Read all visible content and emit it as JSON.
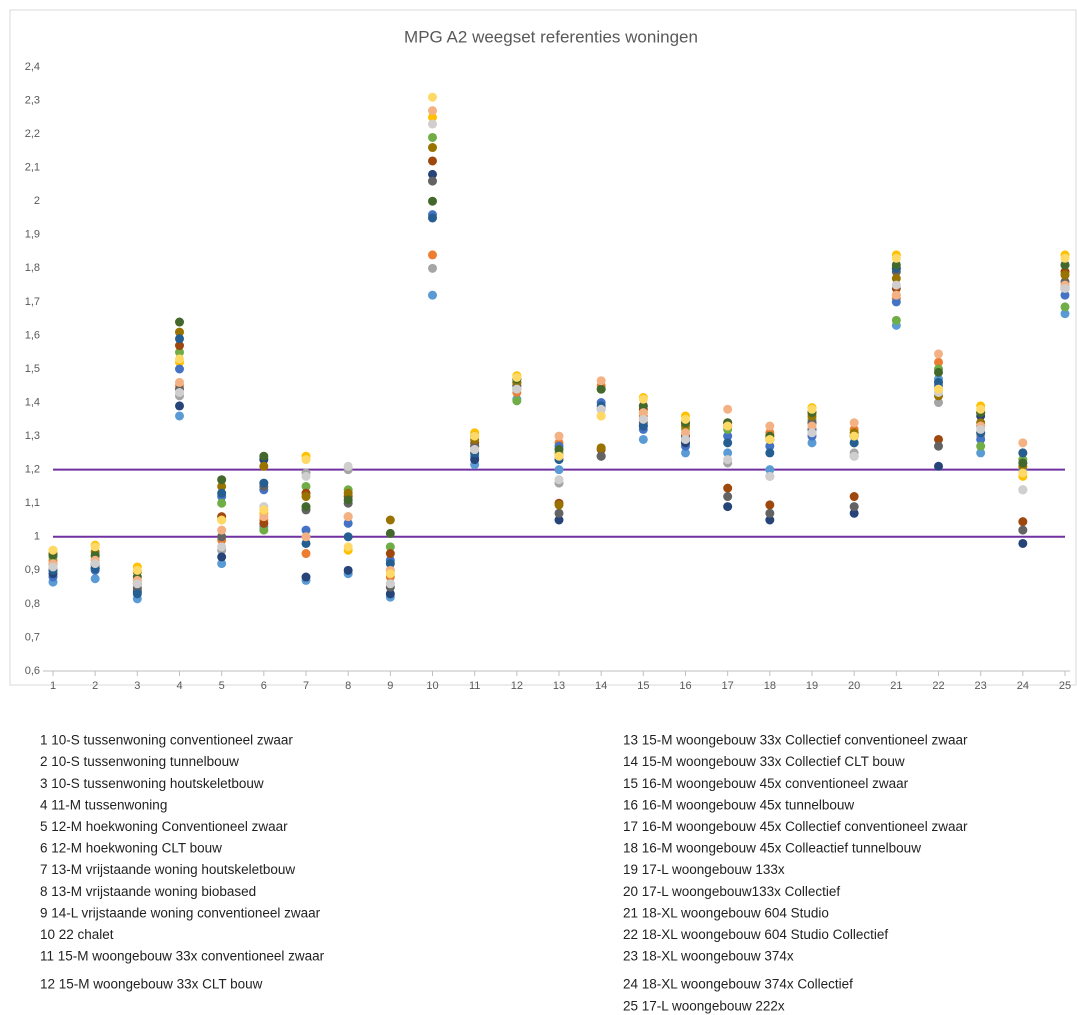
{
  "chart_data": {
    "type": "scatter",
    "title": "MPG A2 weegset referenties woningen",
    "x": [
      1,
      2,
      3,
      4,
      5,
      6,
      7,
      8,
      9,
      10,
      11,
      12,
      13,
      14,
      15,
      16,
      17,
      18,
      19,
      20,
      21,
      22,
      23,
      24,
      25
    ],
    "xlim": [
      1,
      25
    ],
    "xticks": [
      1,
      2,
      3,
      4,
      5,
      6,
      7,
      8,
      9,
      10,
      11,
      12,
      13,
      14,
      15,
      16,
      17,
      18,
      19,
      20,
      21,
      22,
      23,
      24,
      25
    ],
    "ylim": [
      0.6,
      2.4
    ],
    "yticks": [
      {
        "value": 0.6,
        "label": "0,6"
      },
      {
        "value": 0.7,
        "label": "0,7"
      },
      {
        "value": 0.8,
        "label": "0,8"
      },
      {
        "value": 0.9,
        "label": "0,9"
      },
      1,
      {
        "value": 1.1,
        "label": "1,1"
      },
      {
        "value": 1.2,
        "label": "1,2"
      },
      {
        "value": 1.3,
        "label": "1,3"
      },
      {
        "value": 1.4,
        "label": "1,4"
      },
      {
        "value": 1.5,
        "label": "1,5"
      },
      {
        "value": 1.6,
        "label": "1,6"
      },
      {
        "value": 1.7,
        "label": "1,7"
      },
      {
        "value": 1.8,
        "label": "1,8"
      },
      {
        "value": 1.9,
        "label": "1,9"
      },
      2,
      {
        "value": 2.1,
        "label": "2,1"
      },
      {
        "value": 2.2,
        "label": "2,2"
      },
      {
        "value": 2.3,
        "label": "2,3"
      },
      {
        "value": 2.4,
        "label": "2,4"
      }
    ],
    "grid": false,
    "reference_lines": [
      {
        "value": 1,
        "color": "#7030a0"
      },
      {
        "value": 1.2,
        "color": "#7030a0"
      }
    ],
    "series": [
      {
        "color": "#5b9bd5",
        "values": [
          0.865,
          0.875,
          0.815,
          1.36,
          0.92,
          1.03,
          0.87,
          0.89,
          0.82,
          1.72,
          1.215,
          1.41,
          1.2,
          1.38,
          1.29,
          1.25,
          1.25,
          1.2,
          1.28,
          1.24,
          1.63,
          1.47,
          1.25,
          1.2,
          1.665
        ]
      },
      {
        "color": "#ed7d31",
        "values": [
          0.93,
          0.93,
          0.86,
          1.45,
          0.99,
          1.05,
          0.95,
          1.06,
          0.88,
          1.84,
          1.25,
          1.43,
          1.28,
          1.45,
          1.36,
          1.3,
          1.34,
          1.31,
          1.32,
          1.32,
          1.71,
          1.52,
          1.31,
          1.25,
          1.74
        ]
      },
      {
        "color": "#a5a5a5",
        "values": [
          0.91,
          0.91,
          0.85,
          1.42,
          0.96,
          1.08,
          1.19,
          1.2,
          0.86,
          1.8,
          1.26,
          1.44,
          1.16,
          1.38,
          1.35,
          1.28,
          1.22,
          1.18,
          1.31,
          1.25,
          1.72,
          1.4,
          1.3,
          1.14,
          1.75
        ]
      },
      {
        "color": "#ffc000",
        "values": [
          0.96,
          0.975,
          0.91,
          1.52,
          1.05,
          1.07,
          1.24,
          0.96,
          0.9,
          2.25,
          1.31,
          1.48,
          1.24,
          1.36,
          1.415,
          1.36,
          1.33,
          1.3,
          1.385,
          1.3,
          1.84,
          1.44,
          1.39,
          1.18,
          1.84
        ]
      },
      {
        "color": "#4472c4",
        "values": [
          0.88,
          0.9,
          0.84,
          1.5,
          1.12,
          1.14,
          1.02,
          1.04,
          0.93,
          1.96,
          1.24,
          1.45,
          1.27,
          1.4,
          1.32,
          1.27,
          1.3,
          1.27,
          1.3,
          1.3,
          1.7,
          1.45,
          1.29,
          1.22,
          1.72
        ]
      },
      {
        "color": "#70ad47",
        "values": [
          0.94,
          0.94,
          0.87,
          1.55,
          1.1,
          1.02,
          1.15,
          1.14,
          0.97,
          2.19,
          1.27,
          1.405,
          1.25,
          1.44,
          1.37,
          1.32,
          1.32,
          1.29,
          1.35,
          1.28,
          1.645,
          1.5,
          1.27,
          1.23,
          1.685
        ]
      },
      {
        "color": "#264478",
        "values": [
          0.89,
          0.905,
          0.835,
          1.39,
          0.94,
          1.23,
          0.88,
          0.9,
          0.83,
          2.08,
          1.23,
          1.46,
          1.05,
          1.24,
          1.33,
          1.28,
          1.09,
          1.05,
          1.34,
          1.07,
          1.8,
          1.21,
          1.36,
          0.98,
          1.81
        ]
      },
      {
        "color": "#9e480e",
        "values": [
          0.92,
          0.92,
          0.86,
          1.57,
          1.06,
          1.04,
          1.13,
          1.12,
          0.95,
          2.12,
          1.28,
          1.47,
          1.1,
          1.26,
          1.38,
          1.34,
          1.145,
          1.095,
          1.37,
          1.12,
          1.74,
          1.29,
          1.37,
          1.045,
          1.79
        ]
      },
      {
        "color": "#636363",
        "values": [
          0.9,
          0.915,
          0.845,
          1.44,
          1.0,
          1.15,
          1.08,
          1.1,
          0.85,
          2.06,
          1.27,
          1.45,
          1.07,
          1.24,
          1.34,
          1.3,
          1.12,
          1.07,
          1.34,
          1.09,
          1.79,
          1.27,
          1.33,
          1.02,
          1.76
        ]
      },
      {
        "color": "#997300",
        "values": [
          0.95,
          0.955,
          0.895,
          1.61,
          1.15,
          1.21,
          1.12,
          1.13,
          1.05,
          2.16,
          1.29,
          1.46,
          1.095,
          1.265,
          1.39,
          1.33,
          1.33,
          1.29,
          1.36,
          1.31,
          1.77,
          1.42,
          1.34,
          1.21,
          1.78
        ]
      },
      {
        "color": "#255e91",
        "values": [
          0.9,
          0.905,
          0.83,
          1.59,
          1.13,
          1.16,
          0.98,
          1.0,
          0.92,
          1.95,
          1.25,
          1.44,
          1.23,
          1.39,
          1.33,
          1.29,
          1.28,
          1.25,
          1.32,
          1.28,
          1.8,
          1.46,
          1.31,
          1.25,
          1.74
        ]
      },
      {
        "color": "#43682b",
        "values": [
          0.945,
          0.945,
          0.88,
          1.64,
          1.17,
          1.24,
          1.09,
          1.11,
          1.01,
          2.0,
          1.3,
          1.47,
          1.26,
          1.44,
          1.39,
          1.34,
          1.34,
          1.3,
          1.37,
          1.3,
          1.81,
          1.49,
          1.37,
          1.22,
          1.81
        ]
      },
      {
        "color": "#f4b183",
        "values": [
          0.92,
          0.93,
          0.87,
          1.46,
          1.02,
          1.06,
          1.0,
          1.06,
          0.9,
          2.27,
          1.26,
          1.44,
          1.3,
          1.465,
          1.37,
          1.31,
          1.38,
          1.33,
          1.33,
          1.34,
          1.72,
          1.545,
          1.33,
          1.28,
          1.75
        ]
      },
      {
        "color": "#d0cece",
        "values": [
          0.91,
          0.92,
          0.86,
          1.43,
          0.97,
          1.09,
          1.18,
          1.21,
          0.86,
          2.23,
          1.26,
          1.44,
          1.17,
          1.38,
          1.35,
          1.29,
          1.23,
          1.18,
          1.31,
          1.24,
          1.75,
          1.43,
          1.32,
          1.14,
          1.74
        ]
      },
      {
        "color": "#ffd966",
        "values": [
          0.96,
          0.97,
          0.9,
          1.53,
          1.05,
          1.08,
          1.23,
          0.97,
          0.89,
          2.31,
          1.3,
          1.475,
          1.24,
          1.36,
          1.41,
          1.35,
          1.33,
          1.29,
          1.38,
          1.3,
          1.83,
          1.44,
          1.38,
          1.19,
          1.83
        ]
      }
    ],
    "legend_items": [
      "1 10-S tussenwoning conventioneel zwaar",
      "2 10-S tussenwoning tunnelbouw",
      "3 10-S tussenwoning houtskeletbouw",
      "4 11-M tussenwoning",
      "5 12-M hoekwoning Conventioneel zwaar",
      "6 12-M hoekwoning CLT bouw",
      "7 13-M vrijstaande woning houtskeletbouw",
      "8 13-M vrijstaande woning biobased",
      "9 14-L vrijstaande woning conventioneel zwaar",
      "10 22 chalet",
      "11 15-M woongebouw 33x conventioneel zwaar",
      "12 15-M woongebouw 33x CLT bouw",
      "13 15-M woongebouw 33x Collectief conventioneel zwaar",
      "14 15-M woongebouw 33x Collectief CLT bouw",
      "15 16-M woongebouw 45x conventioneel zwaar",
      "16 16-M woongebouw 45x tunnelbouw",
      "17 16-M woongebouw 45x Collectief conventioneel zwaar",
      "18 16-M woongebouw 45x Colleactief tunnelbouw",
      "19 17-L woongebouw 133x",
      "20 17-L woongebouw133x Collectief",
      "21 18-XL woongebouw 604 Studio",
      "22 18-XL woongebouw 604 Studio Collectief",
      "23 18-XL woongebouw 374x",
      "24 18-XL woongebouw 374x Collectief",
      "25 17-L woongebouw 222x"
    ]
  }
}
